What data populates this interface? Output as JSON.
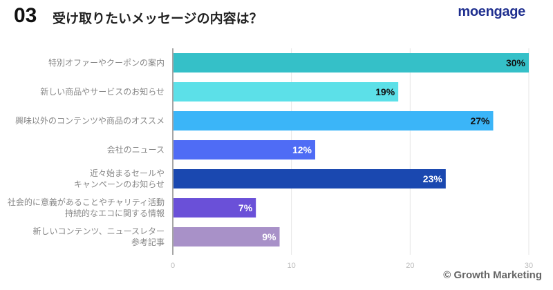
{
  "header": {
    "number": "03",
    "title": "受け取りたいメッセージの内容は？",
    "logo": "moengage"
  },
  "footer": {
    "credit": "© Growth Marketing"
  },
  "chart_data": {
    "type": "bar",
    "orientation": "horizontal",
    "categories": [
      [
        "特別オファーやクーポンの案内"
      ],
      [
        "新しい商品やサービスのお知らせ"
      ],
      [
        "興味以外のコンテンツや商品のオススメ"
      ],
      [
        "会社のニュース"
      ],
      [
        "近々始まるセールや",
        "キャンペーンのお知らせ"
      ],
      [
        "社会的に意義があることやチャリティ活動",
        "持続的なエコに関する情報"
      ],
      [
        "新しいコンテンツ、ニュースレター",
        "参考記事"
      ]
    ],
    "values": [
      30,
      19,
      27,
      12,
      23,
      7,
      9
    ],
    "data_labels": [
      "30%",
      "19%",
      "27%",
      "12%",
      "23%",
      "7%",
      "9%"
    ],
    "colors": [
      "#35c0c8",
      "#5ce0e8",
      "#3bb5f8",
      "#4f6cf5",
      "#1a48b0",
      "#6a50d8",
      "#a891c8"
    ],
    "label_colors": [
      "#111111",
      "#111111",
      "#111111",
      "#ffffff",
      "#ffffff",
      "#ffffff",
      "#ffffff"
    ],
    "xlim": [
      0,
      30
    ],
    "xticks": [
      0,
      10,
      20,
      30
    ],
    "grid": true
  }
}
